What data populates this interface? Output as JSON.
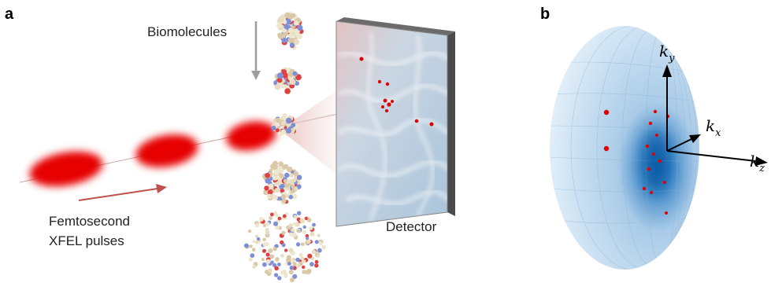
{
  "panels": {
    "a": "a",
    "b": "b"
  },
  "labels": {
    "biomolecules": "Biomolecules",
    "femtosecond": "Femtosecond",
    "xfel_pulses": "XFEL pulses",
    "detector": "Detector"
  },
  "axes": {
    "ky": {
      "base": "k",
      "sub": "y"
    },
    "kx": {
      "base": "k",
      "sub": "x"
    },
    "kz": {
      "base": "k",
      "sub": "z"
    }
  },
  "colors": {
    "pulse": "#e60000",
    "arrow_pulse": "#c0504d",
    "arrow_gray": "#9e9e9e",
    "detector_face": "#c8d8e6",
    "detector_frame": "#5a5a5a",
    "ewald": "#cfe3f3",
    "ewald_core": "#0b5ea8",
    "spot": "#e00000"
  }
}
